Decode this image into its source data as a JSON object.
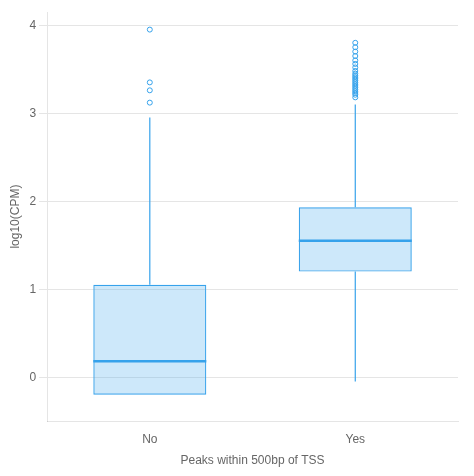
{
  "chart_data": {
    "type": "box",
    "xlabel": "Peaks within 500bp of TSS",
    "ylabel": "log10(CPM)",
    "categories": [
      "No",
      "Yes"
    ],
    "boxes": [
      {
        "median": 0.18,
        "q1": -0.2,
        "q3": 1.05,
        "whisker_low": -0.2,
        "whisker_high": 2.95,
        "outliers": [
          3.12,
          3.26,
          3.35,
          3.95
        ]
      },
      {
        "median": 1.55,
        "q1": 1.2,
        "q3": 1.93,
        "whisker_low": -0.05,
        "whisker_high": 3.1,
        "outliers": [
          3.18,
          3.21,
          3.23,
          3.25,
          3.27,
          3.29,
          3.31,
          3.33,
          3.35,
          3.37,
          3.39,
          3.41,
          3.43,
          3.45,
          3.48,
          3.52,
          3.56,
          3.6,
          3.65,
          3.7,
          3.75,
          3.8
        ]
      }
    ],
    "ylim": [
      -0.5,
      4.15
    ],
    "yticks": [
      0,
      1,
      2,
      3,
      4
    ],
    "grid": true
  }
}
